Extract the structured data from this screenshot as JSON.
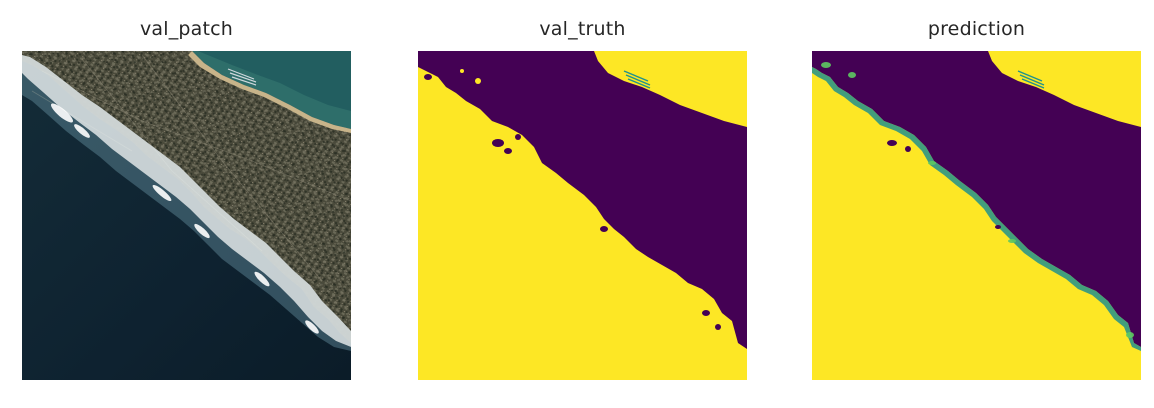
{
  "figure": {
    "panels": [
      {
        "title": "val_patch"
      },
      {
        "title": "val_truth"
      },
      {
        "title": "prediction"
      }
    ]
  },
  "colors": {
    "ocean_deep": "#0d1f2a",
    "ocean_mid": "#163240",
    "surf_white": "#f2f6f7",
    "land_dark": "#3d3d30",
    "land_mid": "#5a5845",
    "sand": "#b9a27a",
    "lagoon": "#2e6e6a",
    "mask_purple": "#440154",
    "mask_yellow": "#fde725",
    "mask_teal": "#21918c",
    "mask_green": "#5ec962"
  }
}
